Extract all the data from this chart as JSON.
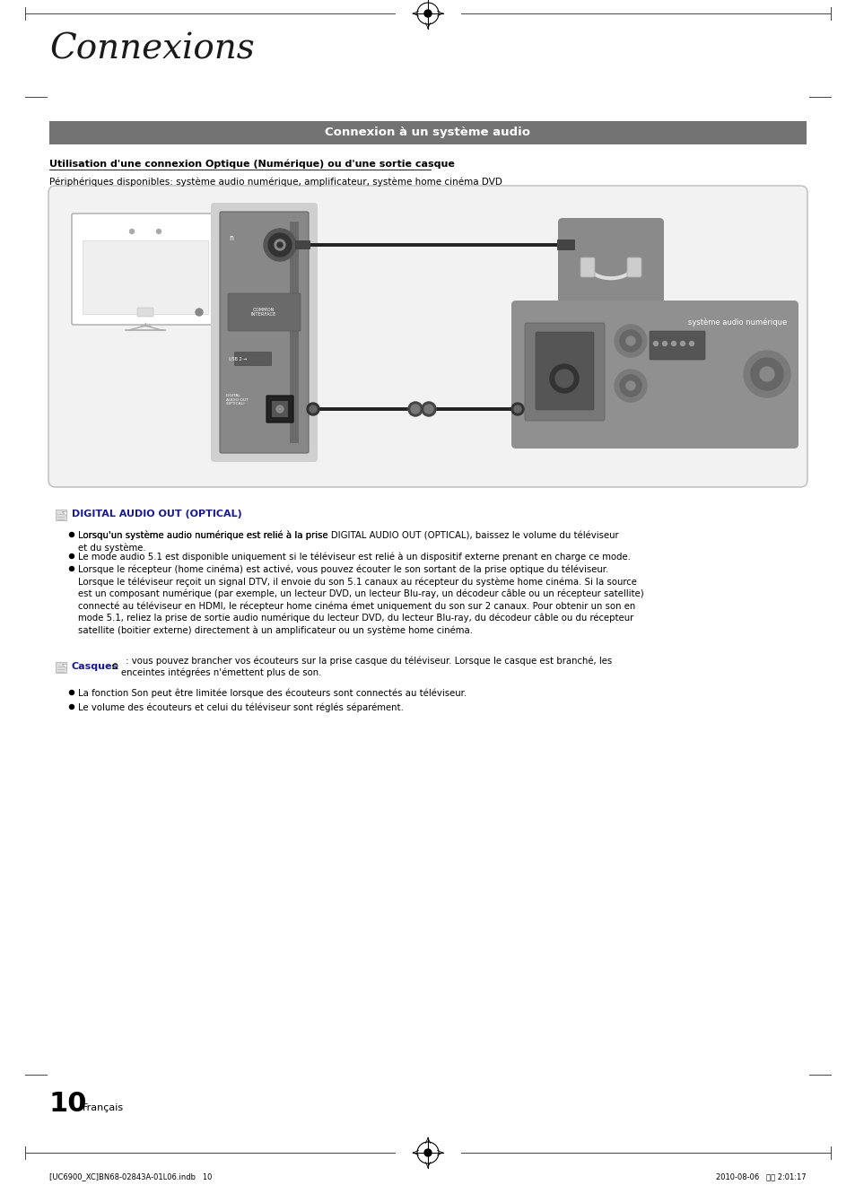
{
  "page_title": "Connexions",
  "section_header": "Connexion à un système audio",
  "section_header_bg": "#737373",
  "section_header_color": "#ffffff",
  "subsection_title": "Utilisation d'une connexion Optique (Numérique) ou d'une sortie casque",
  "subtitle": "Périphériques disponibles: système audio numérique, amplificateur, système home cinéma DVD",
  "digital_audio_title": "DIGITAL AUDIO OUT (OPTICAL)",
  "bullet1_pre": "Lorsqu'un système audio numérique est relié à la prise ",
  "bullet1_bold": "DIGITAL AUDIO OUT (OPTICAL)",
  "bullet1_post": ", baissez le volume du téléviseur\net du système.",
  "bullet2": "Le mode audio 5.1 est disponible uniquement si le téléviseur est relié à un dispositif externe prenant en charge ce mode.",
  "bullet3": "Lorsque le récepteur (home cinéma) est activé, vous pouvez écouter le son sortant de la prise optique du téléviseur.\nLorsque le téléviseur reçoit un signal DTV, il envoie du son 5.1 canaux au récepteur du système home cinéma. Si la source\nest un composant numérique (par exemple, un lecteur DVD, un lecteur Blu-ray, un décodeur câble ou un récepteur satellite)\nconnecté au téléviseur en HDMI, le récepteur home cinéma émet uniquement du son sur 2 canaux. Pour obtenir un son en\nmode 5.1, reliez la prise de sortie audio numérique du lecteur DVD, du lecteur Blu-ray, du décodeur câble ou du récepteur\nsatellite (boitier externe) directement à un amplificateur ou un système home cinéma.",
  "casques_intro_bold": "Casques",
  "casques_intro_rest": "  : vous pouvez brancher vos écouteurs sur la prise casque du téléviseur. Lorsque le casque est branché, les\nenceintes intégrées n'émettent plus de son.",
  "casques_bullet1": "La fonction Son peut être limitée lorsque des écouteurs sont connectés au téléviseur.",
  "casques_bullet2": "Le volume des écouteurs et celui du téléviseur sont réglés séparément.",
  "footer_left": "[UC6900_XC]BN68-02843A-01L06.indb   10",
  "footer_right": "2010-08-06   오후 2:01:17",
  "page_number": "10",
  "page_lang": "Français",
  "bg_color": "#ffffff",
  "panel_color": "#888888",
  "panel_light": "#b0b0b0",
  "device_gray": "#959595",
  "hp_box_color": "#8a8a8a",
  "audio_box_color": "#909090",
  "diag_bg": "#f2f2f2",
  "diag_border": "#bbbbbb"
}
